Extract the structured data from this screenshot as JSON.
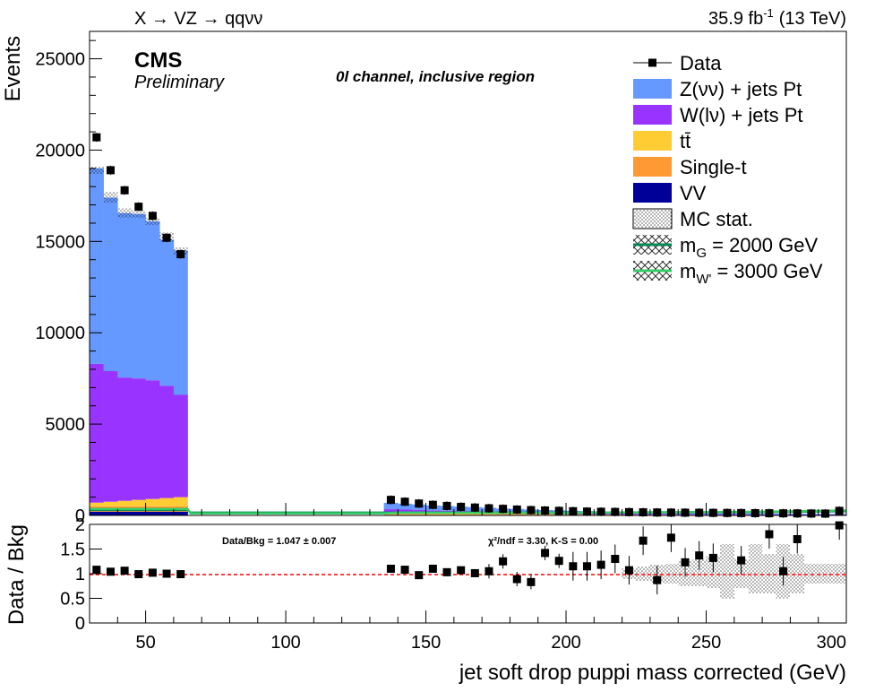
{
  "header": {
    "process": "X → VZ → qqνν",
    "lumi_value": "35.9 fb",
    "lumi_exp": "-1",
    "energy": "(13 TeV)"
  },
  "labels": {
    "experiment": "CMS",
    "status": "Preliminary",
    "region": "0l channel, inclusive region",
    "ratio_summary": "Data/Bkg = 1.047 ± 0.007",
    "fit_summary": "χ²/ndf = 3.30,   K-S = 0.00"
  },
  "colors": {
    "zvv": "#6699ff",
    "wlv": "#9933ff",
    "ttbar": "#ffcc33",
    "singlet": "#ff9933",
    "vv": "#000099",
    "sig1": "#008855",
    "sig2": "#33cc66",
    "ref_line": "#ff0000"
  },
  "legend": [
    {
      "key": "data",
      "label": "Data",
      "style": "marker"
    },
    {
      "key": "zvv",
      "label": "Z(νν) + jets Pt",
      "style": "fill"
    },
    {
      "key": "wlv",
      "label": "W(lν) + jets Pt",
      "style": "fill"
    },
    {
      "key": "ttbar",
      "label": "tt̄",
      "style": "fill"
    },
    {
      "key": "singlet",
      "label": "Single-t",
      "style": "fill"
    },
    {
      "key": "vv",
      "label": "VV",
      "style": "fill"
    },
    {
      "key": "mcstat",
      "label": "MC stat.",
      "style": "hatch"
    },
    {
      "key": "sig1",
      "label": "m_G = 2000 GeV",
      "style": "line"
    },
    {
      "key": "sig2",
      "label": "m_W' = 3000 GeV",
      "style": "line"
    }
  ],
  "chart_data": {
    "type": "bar",
    "xlabel": "jet soft drop puppi mass corrected (GeV)",
    "ylabel": "Events",
    "ratio_ylabel": "Data / Bkg",
    "xlim": [
      30,
      300
    ],
    "ylim": [
      0,
      26500
    ],
    "ratio_ylim": [
      0,
      2
    ],
    "x_ticks": [
      50,
      100,
      150,
      200,
      250,
      300
    ],
    "y_ticks": [
      0,
      5000,
      10000,
      15000,
      20000,
      25000
    ],
    "ratio_ticks": [
      0,
      0.5,
      1,
      1.5,
      2
    ],
    "ratio_tick_labels": [
      "0",
      "0.5",
      "1",
      "1.5",
      "2"
    ],
    "bin_width": 5,
    "bins": [
      {
        "x": 32.5,
        "zvv": 10700,
        "wlv": 7600,
        "ttbar": 200,
        "singlet": 300,
        "vv": 200,
        "data": 20700,
        "ratio": 1.08
      },
      {
        "x": 37.5,
        "zvv": 9500,
        "wlv": 7150,
        "ttbar": 250,
        "singlet": 300,
        "vv": 200,
        "data": 18900,
        "ratio": 1.04
      },
      {
        "x": 42.5,
        "zvv": 9000,
        "wlv": 6750,
        "ttbar": 300,
        "singlet": 300,
        "vv": 200,
        "data": 17800,
        "ratio": 1.06
      },
      {
        "x": 47.5,
        "zvv": 9000,
        "wlv": 6650,
        "ttbar": 350,
        "singlet": 300,
        "vv": 200,
        "data": 16900,
        "ratio": 0.99
      },
      {
        "x": 52.5,
        "zvv": 8700,
        "wlv": 6500,
        "ttbar": 400,
        "singlet": 300,
        "vv": 200,
        "data": 16400,
        "ratio": 1.02
      },
      {
        "x": 57.5,
        "zvv": 8000,
        "wlv": 6150,
        "ttbar": 450,
        "singlet": 300,
        "vv": 200,
        "data": 15200,
        "ratio": 1.0
      },
      {
        "x": 62.5,
        "zvv": 7900,
        "wlv": 5600,
        "ttbar": 500,
        "singlet": 300,
        "vv": 200,
        "data": 14300,
        "ratio": 0.99
      },
      {
        "x": 137.5,
        "zvv": 350,
        "wlv": 240,
        "ttbar": 40,
        "singlet": 30,
        "vv": 30,
        "data": 850,
        "ratio": 1.1
      },
      {
        "x": 142.5,
        "zvv": 320,
        "wlv": 220,
        "ttbar": 40,
        "singlet": 30,
        "vv": 30,
        "data": 750,
        "ratio": 1.08
      },
      {
        "x": 147.5,
        "zvv": 300,
        "wlv": 200,
        "ttbar": 40,
        "singlet": 30,
        "vv": 30,
        "data": 650,
        "ratio": 0.97
      },
      {
        "x": 152.5,
        "zvv": 270,
        "wlv": 180,
        "ttbar": 40,
        "singlet": 30,
        "vv": 30,
        "data": 580,
        "ratio": 1.1
      },
      {
        "x": 157.5,
        "zvv": 250,
        "wlv": 160,
        "ttbar": 40,
        "singlet": 30,
        "vv": 30,
        "data": 520,
        "ratio": 1.03
      },
      {
        "x": 162.5,
        "zvv": 230,
        "wlv": 150,
        "ttbar": 40,
        "singlet": 30,
        "vv": 30,
        "data": 470,
        "ratio": 1.07
      },
      {
        "x": 167.5,
        "zvv": 210,
        "wlv": 140,
        "ttbar": 40,
        "singlet": 30,
        "vv": 30,
        "data": 430,
        "ratio": 1.01
      },
      {
        "x": 172.5,
        "zvv": 190,
        "wlv": 130,
        "ttbar": 40,
        "singlet": 30,
        "vv": 30,
        "data": 390,
        "ratio": 1.05
      },
      {
        "x": 177.5,
        "zvv": 170,
        "wlv": 120,
        "ttbar": 35,
        "singlet": 25,
        "vv": 25,
        "data": 360,
        "ratio": 1.25
      },
      {
        "x": 182.5,
        "zvv": 160,
        "wlv": 110,
        "ttbar": 35,
        "singlet": 25,
        "vv": 25,
        "data": 320,
        "ratio": 0.89
      },
      {
        "x": 187.5,
        "zvv": 150,
        "wlv": 100,
        "ttbar": 30,
        "singlet": 20,
        "vv": 20,
        "data": 290,
        "ratio": 0.83
      },
      {
        "x": 192.5,
        "zvv": 140,
        "wlv": 90,
        "ttbar": 30,
        "singlet": 20,
        "vv": 20,
        "data": 270,
        "ratio": 1.42
      },
      {
        "x": 197.5,
        "zvv": 130,
        "wlv": 85,
        "ttbar": 25,
        "singlet": 20,
        "vv": 20,
        "data": 250,
        "ratio": 1.26
      },
      {
        "x": 202.5,
        "zvv": 120,
        "wlv": 80,
        "ttbar": 25,
        "singlet": 15,
        "vv": 15,
        "data": 230,
        "ratio": 1.15
      },
      {
        "x": 207.5,
        "zvv": 110,
        "wlv": 75,
        "ttbar": 20,
        "singlet": 15,
        "vv": 15,
        "data": 210,
        "ratio": 1.15
      },
      {
        "x": 212.5,
        "zvv": 100,
        "wlv": 70,
        "ttbar": 20,
        "singlet": 15,
        "vv": 15,
        "data": 200,
        "ratio": 1.18
      },
      {
        "x": 217.5,
        "zvv": 95,
        "wlv": 65,
        "ttbar": 20,
        "singlet": 15,
        "vv": 15,
        "data": 190,
        "ratio": 1.3
      },
      {
        "x": 222.5,
        "zvv": 90,
        "wlv": 60,
        "ttbar": 15,
        "singlet": 10,
        "vv": 10,
        "data": 180,
        "ratio": 1.07
      },
      {
        "x": 227.5,
        "zvv": 85,
        "wlv": 55,
        "ttbar": 15,
        "singlet": 10,
        "vv": 10,
        "data": 170,
        "ratio": 1.67
      },
      {
        "x": 232.5,
        "zvv": 80,
        "wlv": 50,
        "ttbar": 15,
        "singlet": 10,
        "vv": 10,
        "data": 160,
        "ratio": 0.87
      },
      {
        "x": 237.5,
        "zvv": 75,
        "wlv": 48,
        "ttbar": 15,
        "singlet": 10,
        "vv": 10,
        "data": 155,
        "ratio": 1.73
      },
      {
        "x": 242.5,
        "zvv": 70,
        "wlv": 45,
        "ttbar": 12,
        "singlet": 10,
        "vv": 10,
        "data": 150,
        "ratio": 1.23
      },
      {
        "x": 247.5,
        "zvv": 65,
        "wlv": 42,
        "ttbar": 12,
        "singlet": 8,
        "vv": 8,
        "data": 145,
        "ratio": 1.37
      },
      {
        "x": 252.5,
        "zvv": 60,
        "wlv": 40,
        "ttbar": 12,
        "singlet": 8,
        "vv": 8,
        "data": 140,
        "ratio": 1.32
      },
      {
        "x": 257.5,
        "zvv": 58,
        "wlv": 38,
        "ttbar": 10,
        "singlet": 8,
        "vv": 8,
        "data": 135,
        "ratio": null
      },
      {
        "x": 262.5,
        "zvv": 55,
        "wlv": 36,
        "ttbar": 10,
        "singlet": 8,
        "vv": 8,
        "data": 130,
        "ratio": 1.27
      },
      {
        "x": 267.5,
        "zvv": 52,
        "wlv": 34,
        "ttbar": 10,
        "singlet": 8,
        "vv": 8,
        "data": 125,
        "ratio": null
      },
      {
        "x": 272.5,
        "zvv": 50,
        "wlv": 32,
        "ttbar": 10,
        "singlet": 8,
        "vv": 8,
        "data": 120,
        "ratio": 1.8
      },
      {
        "x": 277.5,
        "zvv": 48,
        "wlv": 30,
        "ttbar": 10,
        "singlet": 8,
        "vv": 8,
        "data": 115,
        "ratio": 1.05
      },
      {
        "x": 282.5,
        "zvv": 46,
        "wlv": 28,
        "ttbar": 10,
        "singlet": 8,
        "vv": 8,
        "data": 110,
        "ratio": 1.7
      },
      {
        "x": 287.5,
        "zvv": 44,
        "wlv": 26,
        "ttbar": 8,
        "singlet": 6,
        "vv": 6,
        "data": 105,
        "ratio": null
      },
      {
        "x": 292.5,
        "zvv": 42,
        "wlv": 25,
        "ttbar": 8,
        "singlet": 6,
        "vv": 6,
        "data": 100,
        "ratio": null
      },
      {
        "x": 297.5,
        "zvv": 40,
        "wlv": 24,
        "ttbar": 8,
        "singlet": 6,
        "vv": 6,
        "data": 250,
        "ratio": 1.98
      }
    ],
    "mc_unc": [
      {
        "x": 32.5,
        "lo": 18700,
        "hi": 19100
      },
      {
        "x": 37.5,
        "lo": 17100,
        "hi": 17700
      },
      {
        "x": 42.5,
        "lo": 16300,
        "hi": 16800
      },
      {
        "x": 47.5,
        "lo": 16300,
        "hi": 16700
      },
      {
        "x": 52.5,
        "lo": 15900,
        "hi": 16300
      },
      {
        "x": 57.5,
        "lo": 15000,
        "hi": 15500
      },
      {
        "x": 62.5,
        "lo": 14300,
        "hi": 14700
      }
    ],
    "ratio_unc": [
      {
        "x": 222.5,
        "lo": 0.9,
        "hi": 1.1
      },
      {
        "x": 227.5,
        "lo": 0.85,
        "hi": 1.15
      },
      {
        "x": 232.5,
        "lo": 0.82,
        "hi": 1.18
      },
      {
        "x": 237.5,
        "lo": 0.8,
        "hi": 1.2
      },
      {
        "x": 242.5,
        "lo": 0.75,
        "hi": 1.25
      },
      {
        "x": 247.5,
        "lo": 0.75,
        "hi": 1.3
      },
      {
        "x": 252.5,
        "lo": 0.7,
        "hi": 1.35
      },
      {
        "x": 257.5,
        "lo": 0.5,
        "hi": 1.6
      },
      {
        "x": 262.5,
        "lo": 0.7,
        "hi": 1.3
      },
      {
        "x": 267.5,
        "lo": 0.6,
        "hi": 1.6
      },
      {
        "x": 272.5,
        "lo": 0.6,
        "hi": 1.4
      },
      {
        "x": 277.5,
        "lo": 0.5,
        "hi": 1.6
      },
      {
        "x": 282.5,
        "lo": 0.6,
        "hi": 1.4
      },
      {
        "x": 287.5,
        "lo": 0.8,
        "hi": 1.2
      },
      {
        "x": 292.5,
        "lo": 0.8,
        "hi": 1.2
      },
      {
        "x": 297.5,
        "lo": 0.8,
        "hi": 1.2
      }
    ],
    "signals": [
      {
        "name": "m_G = 2000 GeV",
        "points": [
          [
            30,
            300
          ],
          [
            65,
            300
          ],
          [
            66,
            150
          ],
          [
            135,
            150
          ],
          [
            140,
            160
          ],
          [
            200,
            150
          ],
          [
            270,
            180
          ],
          [
            300,
            230
          ]
        ]
      },
      {
        "name": "m_W' = 3000 GeV",
        "points": [
          [
            30,
            350
          ],
          [
            65,
            350
          ],
          [
            66,
            120
          ],
          [
            135,
            120
          ],
          [
            140,
            150
          ],
          [
            200,
            140
          ],
          [
            270,
            200
          ],
          [
            300,
            270
          ]
        ]
      }
    ]
  }
}
